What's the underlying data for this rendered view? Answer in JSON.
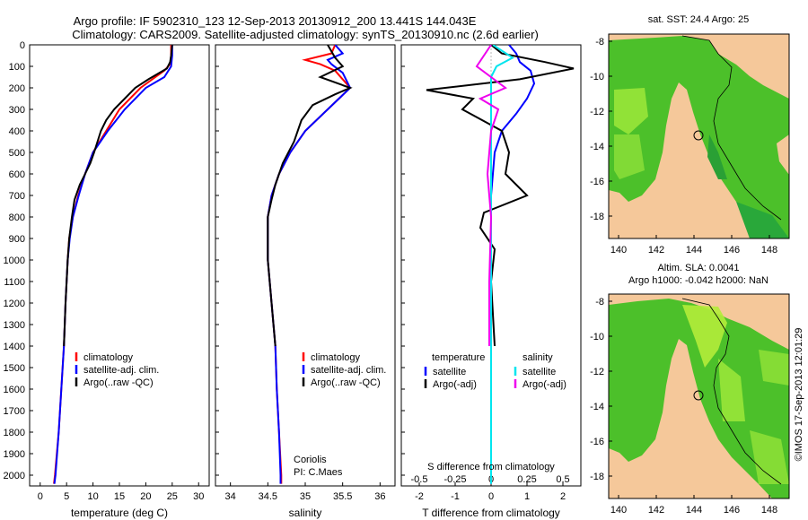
{
  "header": {
    "line1": "Argo profile: IF 5902310_123 12-Sep-2013 20130912_200 13.441S 144.043E",
    "line2": "Climatology: CARS2009. Satellite-adjusted climatology: synTS_20130910.nc (2.6d earlier)"
  },
  "colors": {
    "climatology": "#ff0000",
    "satellite": "#0000ff",
    "argo": "#000000",
    "salinity_satellite": "#00e5ee",
    "salinity_argo": "#ee00ee",
    "land": "#f5c89a"
  },
  "depth_ticks": [
    "0",
    "100",
    "200",
    "300",
    "400",
    "500",
    "600",
    "700",
    "800",
    "900",
    "1000",
    "1100",
    "1200",
    "1300",
    "1400",
    "1500",
    "1600",
    "1700",
    "1800",
    "1900",
    "2000"
  ],
  "chart_data": [
    {
      "type": "line",
      "name": "temperature",
      "xlabel": "temperature (deg C)",
      "xlim": [
        -2,
        32
      ],
      "ylim": [
        2050,
        0
      ],
      "xticks": [
        "0",
        "5",
        "10",
        "15",
        "20",
        "25",
        "30"
      ],
      "legend": [
        "climatology",
        "satellite-adj. clim.",
        "Argo(..raw -QC)"
      ],
      "series": [
        {
          "name": "climatology",
          "values": [
            [
              24.8,
              0
            ],
            [
              24.8,
              50
            ],
            [
              24.6,
              90
            ],
            [
              23.5,
              120
            ],
            [
              19,
              200
            ],
            [
              15,
              300
            ],
            [
              12.5,
              400
            ],
            [
              10,
              500
            ],
            [
              8.5,
              600
            ],
            [
              7.2,
              700
            ],
            [
              6.2,
              800
            ],
            [
              5.5,
              900
            ],
            [
              5.2,
              1000
            ],
            [
              4.8,
              1200
            ],
            [
              4.5,
              1400
            ],
            [
              4,
              1600
            ],
            [
              3.5,
              1800
            ],
            [
              2.8,
              2000
            ],
            [
              2.6,
              2040
            ]
          ]
        },
        {
          "name": "satellite-adj. clim.",
          "values": [
            [
              25,
              0
            ],
            [
              25,
              50
            ],
            [
              24.8,
              100
            ],
            [
              23.5,
              150
            ],
            [
              20,
              200
            ],
            [
              16,
              300
            ],
            [
              12.8,
              400
            ],
            [
              10,
              500
            ],
            [
              8.5,
              600
            ],
            [
              7.3,
              700
            ],
            [
              6.2,
              800
            ],
            [
              5.6,
              900
            ],
            [
              5.2,
              1000
            ],
            [
              4.8,
              1200
            ],
            [
              4.5,
              1400
            ],
            [
              4,
              1600
            ],
            [
              3.5,
              1800
            ],
            [
              2.9,
              2000
            ],
            [
              2.7,
              2040
            ]
          ]
        },
        {
          "name": "Argo(..raw -QC)",
          "values": [
            [
              25,
              0
            ],
            [
              24.8,
              50
            ],
            [
              24.6,
              80
            ],
            [
              24,
              110
            ],
            [
              20.5,
              160
            ],
            [
              18,
              200
            ],
            [
              16,
              250
            ],
            [
              14,
              300
            ],
            [
              12.5,
              350
            ],
            [
              11.5,
              400
            ],
            [
              10.2,
              500
            ],
            [
              9.5,
              550
            ],
            [
              8.5,
              600
            ],
            [
              7.5,
              650
            ],
            [
              6.5,
              720
            ],
            [
              6,
              800
            ],
            [
              5.5,
              900
            ],
            [
              5.2,
              1000
            ],
            [
              4.8,
              1200
            ],
            [
              4.5,
              1400
            ]
          ]
        }
      ]
    },
    {
      "type": "line",
      "name": "salinity",
      "xlabel": "salinity",
      "xlim": [
        33.8,
        36.2
      ],
      "ylim": [
        2050,
        0
      ],
      "xticks": [
        "34",
        "34.5",
        "35",
        "35.5",
        "36"
      ],
      "legend": [
        "climatology",
        "satellite-adj. clim.",
        "Argo(..raw -QC)"
      ],
      "annotation": [
        "Coriolis",
        "PI: C.Maes"
      ],
      "series": [
        {
          "name": "climatology",
          "values": [
            [
              35.4,
              0
            ],
            [
              35.35,
              40
            ],
            [
              35,
              70
            ],
            [
              35.2,
              90
            ],
            [
              35.4,
              120
            ],
            [
              35.6,
              200
            ],
            [
              35.3,
              300
            ],
            [
              35,
              400
            ],
            [
              34.8,
              500
            ],
            [
              34.65,
              600
            ],
            [
              34.55,
              700
            ],
            [
              34.5,
              800
            ],
            [
              34.5,
              1000
            ],
            [
              34.55,
              1200
            ],
            [
              34.6,
              1400
            ],
            [
              34.62,
              1600
            ],
            [
              34.65,
              1800
            ],
            [
              34.68,
              2000
            ],
            [
              34.68,
              2040
            ]
          ]
        },
        {
          "name": "satellite-adj. clim.",
          "values": [
            [
              35.4,
              0
            ],
            [
              35.5,
              40
            ],
            [
              35.3,
              70
            ],
            [
              35.35,
              90
            ],
            [
              35.5,
              130
            ],
            [
              35.6,
              200
            ],
            [
              35.3,
              300
            ],
            [
              35,
              400
            ],
            [
              34.8,
              500
            ],
            [
              34.65,
              600
            ],
            [
              34.55,
              700
            ],
            [
              34.5,
              800
            ],
            [
              34.5,
              1000
            ],
            [
              34.55,
              1200
            ],
            [
              34.6,
              1400
            ],
            [
              34.62,
              1600
            ],
            [
              34.65,
              1800
            ],
            [
              34.67,
              2000
            ],
            [
              34.67,
              2040
            ]
          ]
        },
        {
          "name": "Argo(..raw -QC)",
          "values": [
            [
              35.3,
              0
            ],
            [
              35.4,
              60
            ],
            [
              35.5,
              100
            ],
            [
              35.2,
              150
            ],
            [
              35.6,
              200
            ],
            [
              35.4,
              230
            ],
            [
              35.1,
              280
            ],
            [
              34.95,
              350
            ],
            [
              34.85,
              450
            ],
            [
              34.7,
              550
            ],
            [
              34.6,
              650
            ],
            [
              34.55,
              720
            ],
            [
              34.5,
              800
            ],
            [
              34.5,
              1000
            ],
            [
              34.55,
              1200
            ],
            [
              34.6,
              1400
            ]
          ]
        }
      ]
    },
    {
      "type": "line",
      "name": "differences",
      "xlabel": "T difference from climatology",
      "xlabel_top": "S difference from climatology",
      "xlim": [
        -2.5,
        2.5
      ],
      "ylim": [
        2050,
        0
      ],
      "xticks": [
        "-2",
        "-1",
        "0",
        "1",
        "2"
      ],
      "xticks_top": [
        "-0.5",
        "-0.25",
        "0",
        "0.25",
        "0.5"
      ],
      "legend_temperature_title": "temperature",
      "legend_salinity_title": "salinity",
      "legend_temperature": [
        "satellite",
        "Argo(-adj)"
      ],
      "legend_salinity": [
        "satellite",
        "Argo(-adj)"
      ],
      "series": [
        {
          "name": "temperature satellite",
          "values": [
            [
              0.5,
              0
            ],
            [
              0.7,
              40
            ],
            [
              0.8,
              80
            ],
            [
              1.1,
              120
            ],
            [
              1.2,
              180
            ],
            [
              1,
              250
            ],
            [
              0.7,
              320
            ],
            [
              0.3,
              400
            ],
            [
              0.1,
              500
            ],
            [
              0,
              700
            ],
            [
              0,
              1000
            ],
            [
              0,
              1400
            ],
            [
              0,
              2040
            ]
          ]
        },
        {
          "name": "temperature Argo(-adj)",
          "values": [
            [
              0,
              0
            ],
            [
              0.3,
              40
            ],
            [
              1.5,
              80
            ],
            [
              2.3,
              110
            ],
            [
              0.8,
              160
            ],
            [
              -1.8,
              210
            ],
            [
              -0.5,
              250
            ],
            [
              -0.8,
              300
            ],
            [
              0.3,
              400
            ],
            [
              0.5,
              500
            ],
            [
              0.4,
              600
            ],
            [
              1,
              700
            ],
            [
              -0.2,
              780
            ],
            [
              -0.3,
              850
            ],
            [
              0.1,
              950
            ],
            [
              0,
              1100
            ],
            [
              0.1,
              1400
            ]
          ]
        },
        {
          "name": "salinity satellite",
          "values": [
            [
              0.05,
              0
            ],
            [
              0.6,
              60
            ],
            [
              0.15,
              100
            ],
            [
              0,
              150
            ],
            [
              0,
              300
            ],
            [
              0,
              500
            ],
            [
              0,
              800
            ],
            [
              0,
              1000
            ],
            [
              0,
              1400
            ],
            [
              0,
              2040
            ]
          ]
        },
        {
          "name": "salinity Argo(-adj)",
          "values": [
            [
              0,
              0
            ],
            [
              -0.4,
              100
            ],
            [
              0.4,
              200
            ],
            [
              -0.3,
              250
            ],
            [
              0.2,
              300
            ],
            [
              0,
              400
            ],
            [
              -0.1,
              600
            ],
            [
              0,
              800
            ],
            [
              -0.05,
              1100
            ],
            [
              -0.05,
              1400
            ]
          ]
        }
      ]
    }
  ],
  "map_top": {
    "title": "sat. SST: 24.4 Argo: 25",
    "yticks": [
      "-8",
      "-10",
      "-12",
      "-14",
      "-16",
      "-18"
    ],
    "xticks": [
      "140",
      "142",
      "144",
      "146",
      "148"
    ]
  },
  "map_bottom": {
    "title_line1": "Altim. SLA: 0.0041",
    "title_line2": "Argo h1000: -0.042 h2000: NaN",
    "yticks": [
      "-8",
      "-10",
      "-12",
      "-14",
      "-16",
      "-18"
    ],
    "xticks": [
      "140",
      "142",
      "144",
      "146",
      "148"
    ]
  },
  "footer": "©IMOS 17-Sep-2013 12:01:29"
}
